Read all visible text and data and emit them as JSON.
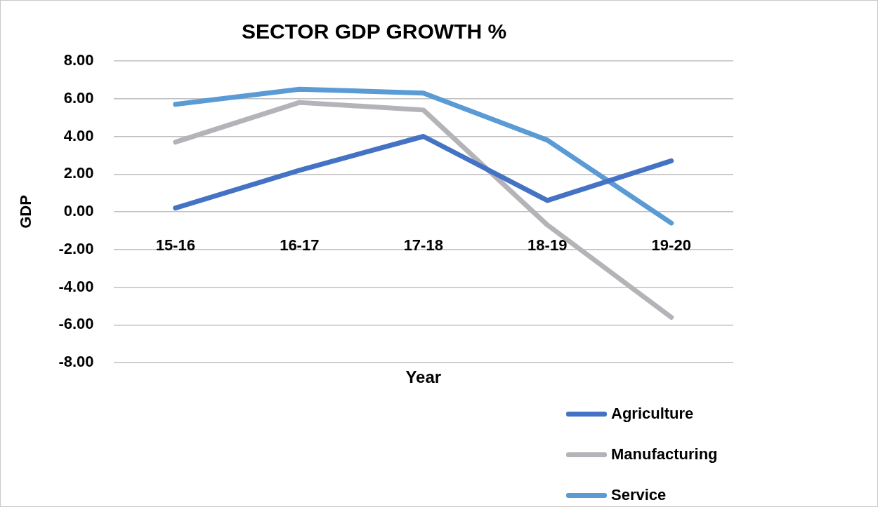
{
  "chart_data": {
    "type": "line",
    "title": "SECTOR GDP GROWTH %",
    "xlabel": "Year",
    "ylabel": "GDP",
    "categories": [
      "15-16",
      "16-17",
      "17-18",
      "18-19",
      "19-20"
    ],
    "series": [
      {
        "name": "Agriculture",
        "color": "#4472c4",
        "values": [
          0.2,
          2.2,
          4.0,
          0.6,
          2.7
        ]
      },
      {
        "name": "Manufacturing",
        "color": "#b4b4b8",
        "values": [
          3.7,
          5.8,
          5.4,
          -0.7,
          -5.6
        ]
      },
      {
        "name": "Service",
        "color": "#5b9bd5",
        "values": [
          5.7,
          6.5,
          6.3,
          3.8,
          -0.6
        ]
      }
    ],
    "ylim": [
      -8,
      8
    ],
    "yticks": [
      {
        "value": -8,
        "label": "-8.00"
      },
      {
        "value": -6,
        "label": "-6.00"
      },
      {
        "value": -4,
        "label": "-4.00"
      },
      {
        "value": -2,
        "label": "-2.00"
      },
      {
        "value": 0,
        "label": "0.00"
      },
      {
        "value": 2,
        "label": "2.00"
      },
      {
        "value": 4,
        "label": "4.00"
      },
      {
        "value": 6,
        "label": "6.00"
      },
      {
        "value": 8,
        "label": "8.00"
      }
    ],
    "grid": "y",
    "legend": "bottom right",
    "marker": "none",
    "line_style": "solid"
  }
}
